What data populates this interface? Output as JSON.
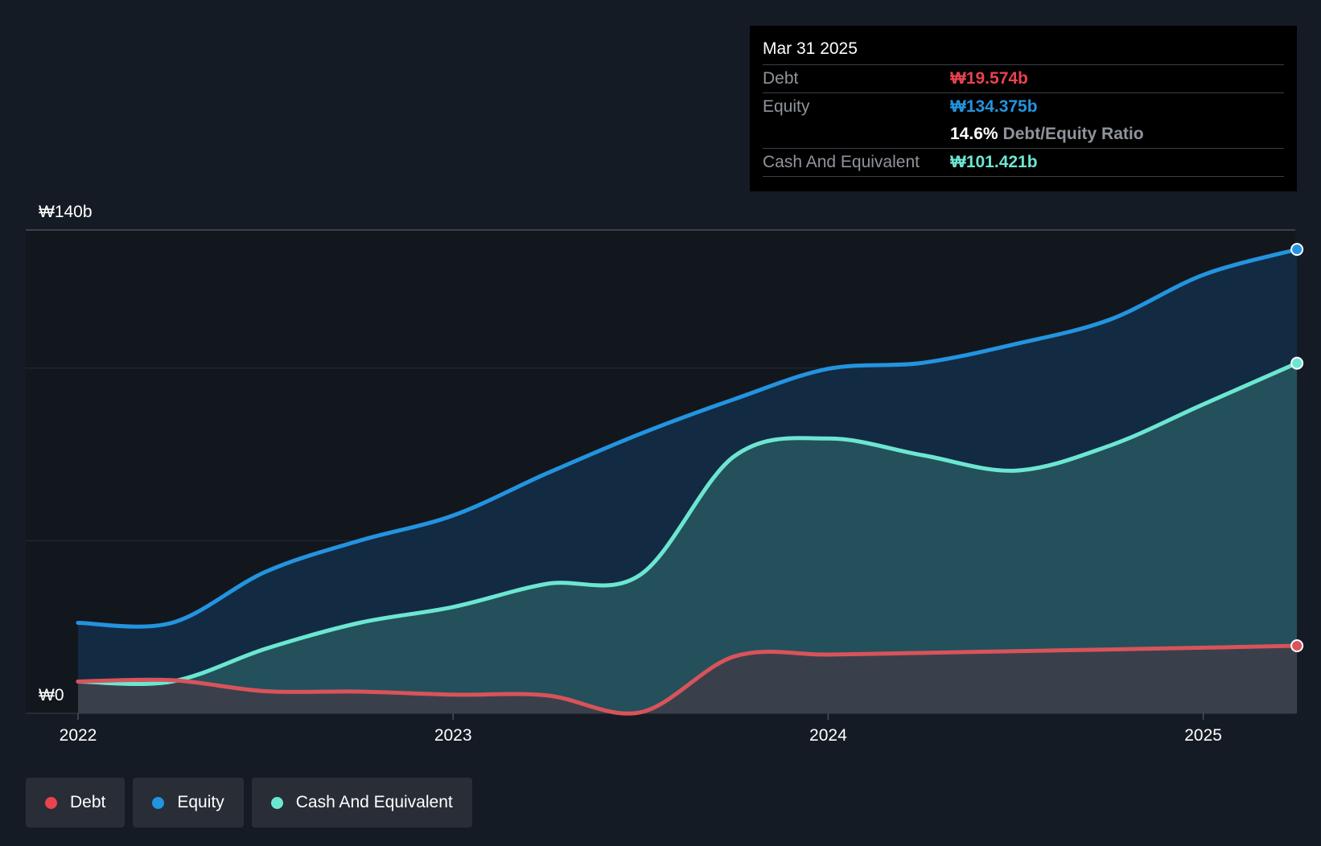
{
  "chart_data": {
    "type": "area",
    "title": "",
    "currency_symbol": "₩",
    "y_labels": {
      "top": "₩140b",
      "bottom": "₩0"
    },
    "ylim": [
      0,
      140
    ],
    "xlim": [
      2022.0,
      2025.25
    ],
    "x_ticks": [
      {
        "value": 2022,
        "label": "2022"
      },
      {
        "value": 2023,
        "label": "2023"
      },
      {
        "value": 2024,
        "label": "2024"
      },
      {
        "value": 2025,
        "label": "2025"
      }
    ],
    "gridlines": [
      0,
      50,
      100,
      140
    ],
    "series": [
      {
        "name": "Equity",
        "color": "#2394df",
        "fill": "#142c47",
        "points": [
          [
            2022.0,
            26.2
          ],
          [
            2022.25,
            26.2
          ],
          [
            2022.5,
            41.0
          ],
          [
            2022.75,
            50.0
          ],
          [
            2023.0,
            57.3
          ],
          [
            2023.25,
            69.5
          ],
          [
            2023.5,
            81.0
          ],
          [
            2023.75,
            91.0
          ],
          [
            2024.0,
            99.8
          ],
          [
            2024.25,
            101.5
          ],
          [
            2024.5,
            107.0
          ],
          [
            2024.75,
            114.0
          ],
          [
            2025.0,
            127.0
          ],
          [
            2025.25,
            134.375
          ]
        ]
      },
      {
        "name": "Cash And Equivalent",
        "color": "#6ce6d1",
        "fill": "#25545d",
        "points": [
          [
            2022.0,
            9.2
          ],
          [
            2022.25,
            9.2
          ],
          [
            2022.5,
            18.7
          ],
          [
            2022.75,
            26.2
          ],
          [
            2023.0,
            30.8
          ],
          [
            2023.25,
            37.5
          ],
          [
            2023.5,
            40.2
          ],
          [
            2023.75,
            74.5
          ],
          [
            2024.0,
            79.6
          ],
          [
            2024.25,
            74.8
          ],
          [
            2024.5,
            70.3
          ],
          [
            2024.75,
            77.5
          ],
          [
            2025.0,
            89.5
          ],
          [
            2025.25,
            101.421
          ]
        ]
      },
      {
        "name": "Debt",
        "color": "#d9535a",
        "fill": "#3d3f4a",
        "points": [
          [
            2022.0,
            9.2
          ],
          [
            2022.25,
            9.6
          ],
          [
            2022.5,
            6.4
          ],
          [
            2022.75,
            6.3
          ],
          [
            2023.0,
            5.4
          ],
          [
            2023.25,
            5.2
          ],
          [
            2023.5,
            0.3
          ],
          [
            2023.75,
            16.5
          ],
          [
            2024.0,
            17.0
          ],
          [
            2024.25,
            17.5
          ],
          [
            2024.5,
            18.0
          ],
          [
            2024.75,
            18.5
          ],
          [
            2025.0,
            19.0
          ],
          [
            2025.25,
            19.574
          ]
        ]
      }
    ]
  },
  "tooltip": {
    "date": "Mar 31 2025",
    "debt_label": "Debt",
    "debt_value": "₩19.574b",
    "debt_color": "#e8434e",
    "equity_label": "Equity",
    "equity_value": "₩134.375b",
    "equity_color": "#2394df",
    "ratio_value": "14.6%",
    "ratio_label": "Debt/Equity Ratio",
    "cash_label": "Cash And Equivalent",
    "cash_value": "₩101.421b",
    "cash_color": "#6ce6d1"
  },
  "legend": {
    "debt": "Debt",
    "equity": "Equity",
    "cash": "Cash And Equivalent",
    "debt_color": "#e8434e",
    "equity_color": "#2394df",
    "cash_color": "#6ce6d1"
  }
}
